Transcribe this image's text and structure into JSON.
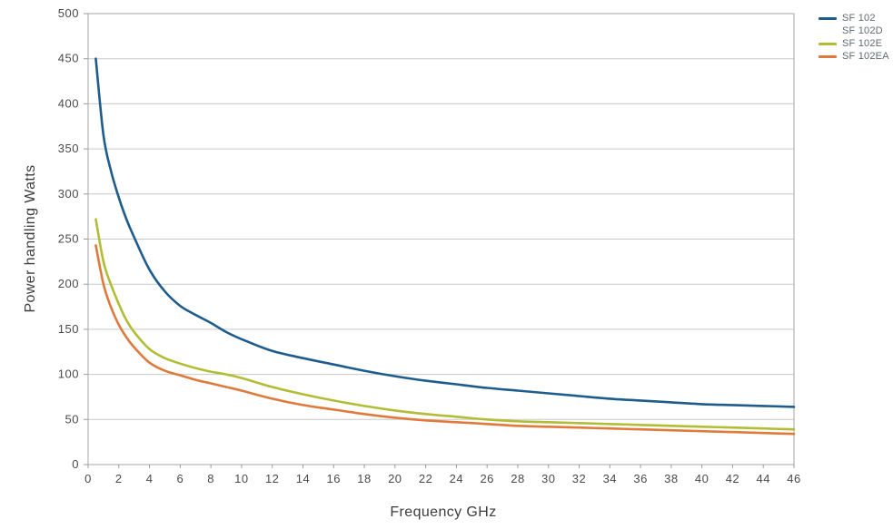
{
  "chart_data": {
    "type": "line",
    "title": "",
    "xlabel": "Frequency GHz",
    "ylabel": "Power handling Watts",
    "xlim": [
      0,
      46
    ],
    "ylim": [
      0,
      500
    ],
    "x_ticks": [
      0,
      2,
      4,
      6,
      8,
      10,
      12,
      14,
      16,
      18,
      20,
      22,
      24,
      26,
      28,
      30,
      32,
      34,
      36,
      38,
      40,
      42,
      44,
      46
    ],
    "y_ticks": [
      0,
      50,
      100,
      150,
      200,
      250,
      300,
      350,
      400,
      450,
      500
    ],
    "grid": "horizontal-every-50",
    "legend_position": "top-right-outside",
    "x": [
      0.5,
      1,
      1.5,
      2,
      2.5,
      3,
      4,
      5,
      6,
      7,
      8,
      9,
      10,
      12,
      14,
      16,
      18,
      20,
      22,
      24,
      26,
      28,
      30,
      32,
      34,
      36,
      38,
      40,
      42,
      44,
      46
    ],
    "series": [
      {
        "name": "SF 102",
        "color": "#1d5c8d",
        "values": [
          450,
          365,
          325,
          296,
          272,
          252,
          216,
          192,
          176,
          166,
          157,
          147,
          139,
          126,
          118,
          111,
          104,
          98,
          93,
          89,
          85,
          82,
          79,
          76,
          73,
          71,
          69,
          67,
          66,
          65,
          64
        ]
      },
      {
        "name": "SF 102D",
        "color": null,
        "values": []
      },
      {
        "name": "SF 102E",
        "color": "#b2bc35",
        "values": [
          272,
          225,
          199,
          178,
          160,
          147,
          128,
          118,
          112,
          107,
          103,
          100,
          96,
          86,
          78,
          71,
          65,
          60,
          56,
          53,
          50,
          48,
          47,
          46,
          45,
          44,
          43,
          42,
          41,
          40,
          39
        ]
      },
      {
        "name": "SF 102EA",
        "color": "#e07a3a",
        "values": [
          243,
          200,
          174,
          155,
          141,
          130,
          113,
          104,
          99,
          94,
          90,
          86,
          82,
          73,
          66,
          61,
          56,
          52,
          49,
          47,
          45,
          43,
          42,
          41,
          40,
          39,
          38,
          37,
          36,
          35,
          34
        ]
      }
    ],
    "colors": {
      "gridline": "#c9c9c9",
      "plot_border": "#b3b3b3",
      "tick_mark": "#9b9b9b",
      "tick_label": "#4a4a4a",
      "axis_title": "#3d3d3d",
      "legend_text": "#5f6a72",
      "background": "#ffffff"
    }
  }
}
